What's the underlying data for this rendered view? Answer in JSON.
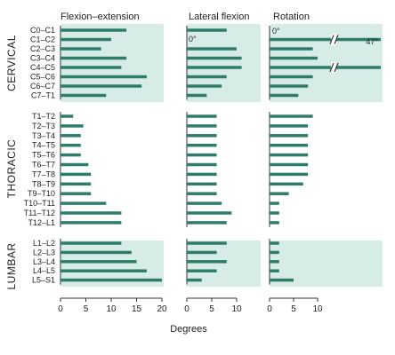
{
  "chart_data": {
    "type": "bar",
    "orientation": "horizontal",
    "xlabel": "Degrees",
    "bar_color": "#2e7d6b",
    "shade_color": "#d8ece7",
    "panels": [
      {
        "key": "flexion",
        "title": "Flexion–extension",
        "xlim": [
          0,
          20
        ],
        "ticks": [
          0,
          5,
          10,
          15,
          20
        ]
      },
      {
        "key": "lateral",
        "title": "Lateral flexion",
        "xlim": [
          0,
          10
        ],
        "ticks": [
          0,
          5,
          10
        ]
      },
      {
        "key": "rotation",
        "title": "Rotation",
        "xlim": [
          0,
          10
        ],
        "ticks": [
          0,
          5,
          10
        ]
      }
    ],
    "regions": [
      {
        "name": "CERVICAL",
        "shaded": true,
        "segments": [
          "C0–C1",
          "C1–C2",
          "C2–C3",
          "C3–C4",
          "C4–C5",
          "C5–C6",
          "C6–C7",
          "C7–T1"
        ],
        "flexion": [
          13,
          10,
          8,
          13,
          12,
          17,
          16,
          9
        ],
        "lateral": [
          8,
          0,
          10,
          11,
          11,
          8,
          7,
          4
        ],
        "rotation": [
          0,
          47,
          9,
          10,
          11,
          9,
          8,
          6
        ]
      },
      {
        "name": "THORACIC",
        "shaded": false,
        "segments": [
          "T1–T2",
          "T2–T3",
          "T3–T4",
          "T4–T5",
          "T5–T6",
          "T6–T7",
          "T7–T8",
          "T8–T9",
          "T9–T10",
          "T10–T11",
          "T11–T12",
          "T12–L1"
        ],
        "flexion": [
          2.5,
          4.5,
          4,
          4,
          4,
          5.5,
          6,
          6,
          6,
          9,
          12,
          12
        ],
        "lateral": [
          6,
          6,
          6,
          6,
          6,
          6,
          6,
          6,
          6,
          7,
          9,
          8
        ],
        "rotation": [
          9,
          8,
          8,
          8,
          8,
          8,
          8,
          7,
          4,
          2,
          2,
          2
        ]
      },
      {
        "name": "LUMBAR",
        "shaded": true,
        "segments": [
          "L1–L2",
          "L2–L3",
          "L3–L4",
          "L4–L5",
          "L5–S1"
        ],
        "flexion": [
          12,
          14,
          15,
          17,
          20
        ],
        "lateral": [
          8,
          6,
          8,
          6,
          3
        ],
        "rotation": [
          2,
          2,
          2,
          2,
          5
        ]
      }
    ],
    "annotations": [
      {
        "panel": "lateral",
        "text": "0°"
      },
      {
        "panel": "rotation",
        "text": "0°"
      },
      {
        "panel": "rotation",
        "text": "47°"
      }
    ]
  }
}
